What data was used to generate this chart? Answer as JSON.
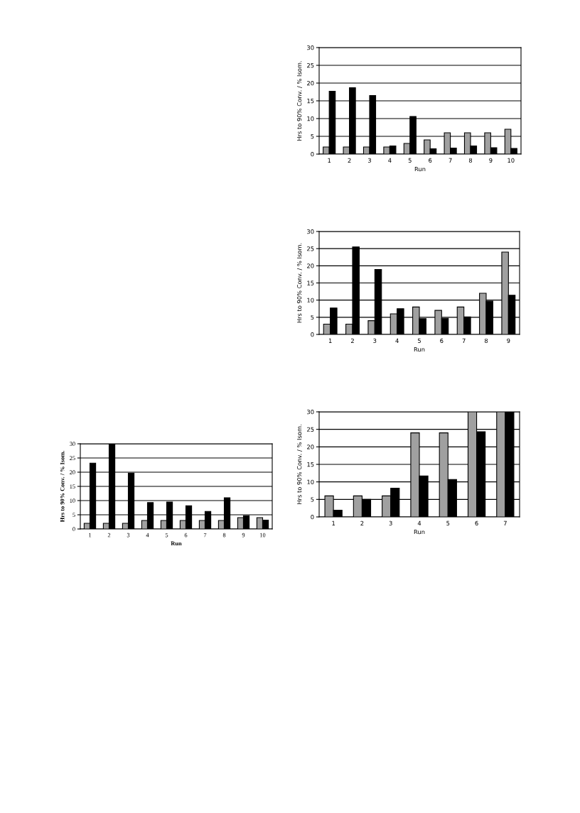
{
  "chart_data": [
    {
      "type": "bar",
      "categories": [
        "1",
        "2",
        "3",
        "4",
        "5",
        "6",
        "7",
        "8",
        "9",
        "10"
      ],
      "xlabel": "Run",
      "ylabel": "Hrs to 90% Conv. / % Isom.",
      "ylim": [
        0,
        30
      ],
      "yticks": [
        0,
        5,
        10,
        15,
        20,
        25,
        30
      ],
      "grid": "y",
      "series": [
        {
          "color": "#a0a0a0",
          "values": [
            2,
            2,
            2,
            2,
            3,
            4,
            6,
            6,
            6,
            7
          ]
        },
        {
          "color": "#000000",
          "values": [
            17.7,
            18.7,
            16.5,
            2.3,
            10.6,
            1.5,
            1.7,
            2.3,
            1.8,
            1.6
          ]
        }
      ]
    },
    {
      "type": "bar",
      "categories": [
        "1",
        "2",
        "3",
        "4",
        "5",
        "6",
        "7",
        "8",
        "9"
      ],
      "xlabel": "Run",
      "ylabel": "Hrs to 90% Conv. / % Isom.",
      "ylim": [
        0,
        30
      ],
      "yticks": [
        0,
        5,
        10,
        15,
        20,
        25,
        30
      ],
      "grid": "y",
      "series": [
        {
          "color": "#a0a0a0",
          "values": [
            3,
            3,
            4,
            6,
            8,
            7,
            8,
            12,
            24
          ]
        },
        {
          "color": "#000000",
          "values": [
            7.7,
            25.5,
            18.9,
            7.5,
            4.6,
            4.7,
            5.1,
            9.7,
            11.4
          ]
        }
      ]
    },
    {
      "type": "bar",
      "categories": [
        "1",
        "2",
        "3",
        "4",
        "5",
        "6",
        "7",
        "8",
        "9",
        "10"
      ],
      "xlabel": "Run",
      "ylabel": "Hrs to 90% Conv. / % Isom.",
      "ylim": [
        0,
        30
      ],
      "yticks": [
        0,
        5,
        10,
        15,
        20,
        25,
        30
      ],
      "grid": "y",
      "series": [
        {
          "color": "#a0a0a0",
          "values": [
            2,
            2,
            2,
            3,
            3,
            3,
            3,
            3,
            4,
            4
          ]
        },
        {
          "color": "#000000",
          "values": [
            23.2,
            30,
            19.7,
            9.3,
            9.5,
            8.2,
            6.2,
            11,
            4.7,
            3.1
          ]
        }
      ]
    },
    {
      "type": "bar",
      "categories": [
        "1",
        "2",
        "3",
        "4",
        "5",
        "6",
        "7"
      ],
      "xlabel": "Run",
      "ylabel": "Hrs to 90% Conv. / % Isom.",
      "ylim": [
        0,
        30
      ],
      "yticks": [
        0,
        5,
        10,
        15,
        20,
        25,
        30
      ],
      "grid": "y",
      "series": [
        {
          "color": "#a0a0a0",
          "values": [
            6,
            6,
            6,
            24,
            24,
            30,
            30
          ]
        },
        {
          "color": "#000000",
          "values": [
            1.9,
            5,
            8.2,
            11.7,
            10.7,
            24.3,
            30
          ]
        }
      ]
    }
  ]
}
